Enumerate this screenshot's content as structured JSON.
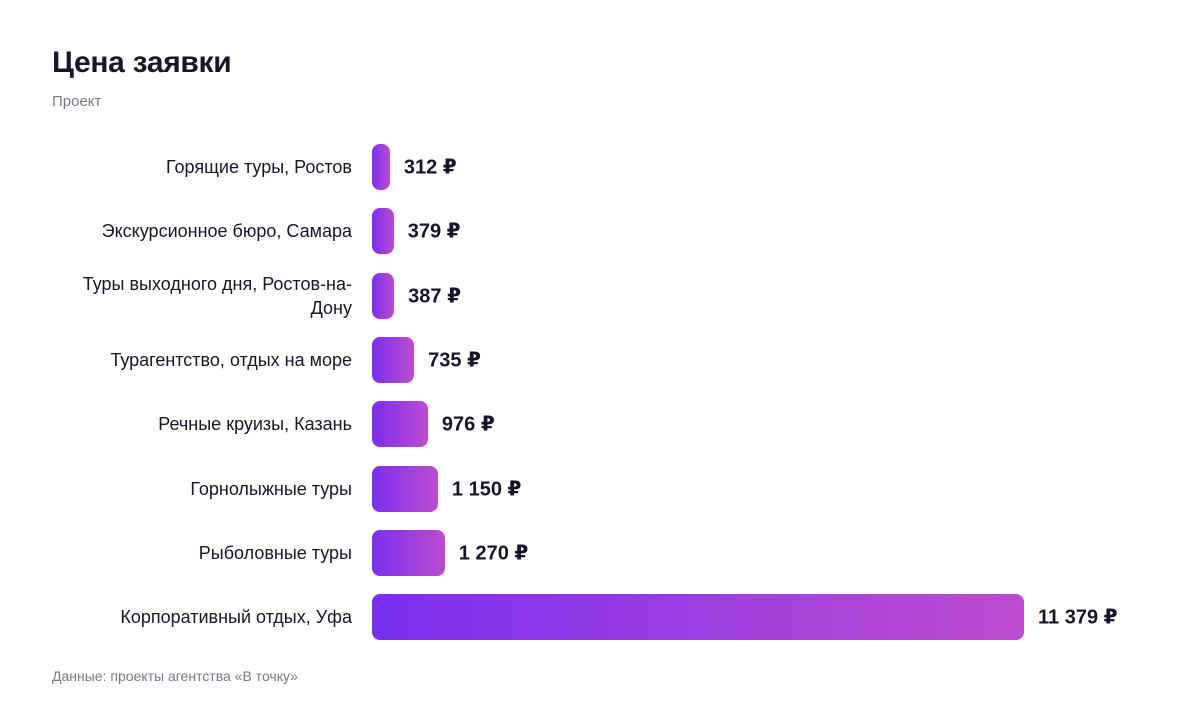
{
  "chart_data": {
    "type": "bar",
    "orientation": "horizontal",
    "title": "Цена заявки",
    "subtitle": "Проект",
    "source": "Данные: проекты агентства «В точку»",
    "categories": [
      "Горящие туры, Ростов",
      "Экскурсионное бюро, Самара",
      "Туры выходного дня, Ростов-на-Дону",
      "Турагентство, отдых на море",
      "Речные круизы, Казань",
      "Горнолыжные туры",
      "Рыболовные туры",
      "Корпоративный отдых, Уфа"
    ],
    "values": [
      312,
      379,
      387,
      735,
      976,
      1150,
      1270,
      11379
    ],
    "value_labels": [
      "312 ₽",
      "379 ₽",
      "387 ₽",
      "735 ₽",
      "976 ₽",
      "1 150 ₽",
      "1 270 ₽",
      "11 379 ₽"
    ],
    "color": [
      "#7a2ff0",
      "#bd4bcf"
    ]
  }
}
